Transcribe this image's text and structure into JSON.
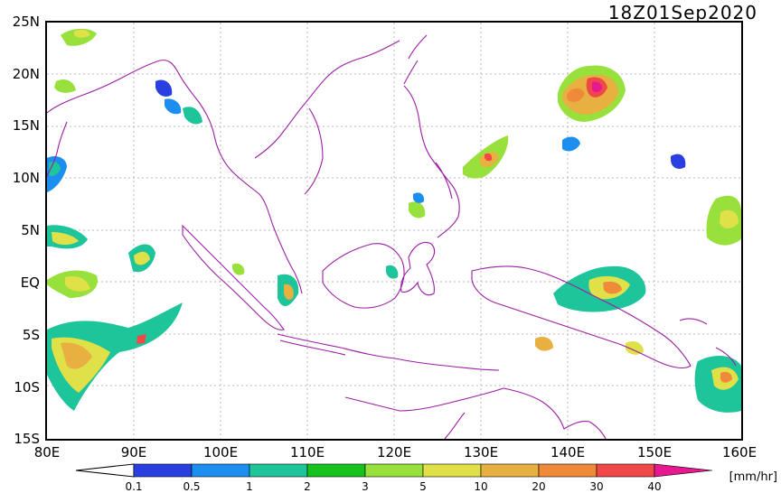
{
  "title": "18Z01Sep2020",
  "y_axis_labels": [
    "25N",
    "20N",
    "15N",
    "10N",
    "5N",
    "EQ",
    "5S",
    "10S",
    "15S"
  ],
  "x_axis_labels": [
    "80E",
    "90E",
    "100E",
    "110E",
    "120E",
    "130E",
    "140E",
    "150E",
    "160E"
  ],
  "legend": {
    "units": "[mm/hr]",
    "thresholds": [
      "0.1",
      "0.5",
      "1",
      "2",
      "3",
      "5",
      "10",
      "20",
      "30",
      "40"
    ],
    "colors": [
      "#2a3fe0",
      "#1c8ef0",
      "#1ec59a",
      "#18c21c",
      "#98e03c",
      "#e0e048",
      "#e8b040",
      "#ef8a3a",
      "#f04848",
      "#e81890"
    ]
  },
  "colors": {
    "coastline": "#9b1fa4",
    "grid": "#b8b8b8"
  }
}
